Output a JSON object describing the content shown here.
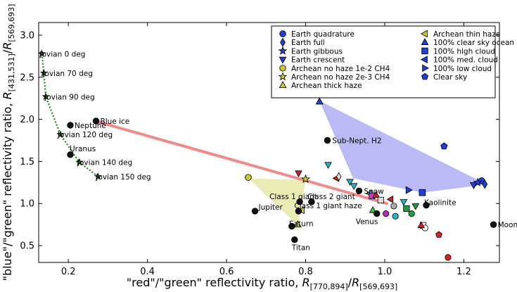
{
  "chart_data": {
    "type": "scatter",
    "xlabel": "\"red\"/\"green\" reflectivity ratio, R[770,894]/R[569,693]",
    "ylabel": "\"blue\"/\"green\" reflectivity ratio, R[431,531]/R[569,693]",
    "xlabel_main": "\"red\"/\"green\" reflectivity ratio, ",
    "xlabel_r1": "R",
    "xlabel_s1": "[770,894]",
    "xlabel_mid": "/",
    "xlabel_r2": "R",
    "xlabel_s2": "[569,693]",
    "ylabel_main": "\"blue\"/\"green\" reflectivity ratio, ",
    "ylabel_r1": "R",
    "ylabel_s1": "[431,531]",
    "ylabel_mid": "/",
    "ylabel_r2": "R",
    "ylabel_s2": "[569,693]",
    "xlim": [
      0.125,
      1.29
    ],
    "ylim": [
      0.3,
      3.15
    ],
    "xticks": [
      "0.2",
      "0.4",
      "0.6",
      "0.8",
      "1.0",
      "1.2"
    ],
    "yticks": [
      "0.5",
      "1.0",
      "1.5",
      "2.0",
      "2.5",
      "3.0"
    ],
    "xtick_values": [
      0.2,
      0.4,
      0.6,
      0.8,
      1.0,
      1.2
    ],
    "ytick_values": [
      0.5,
      1.0,
      1.5,
      2.0,
      2.5,
      3.0
    ],
    "legend_position": "top-right",
    "legend": [
      {
        "label": "Earth quadrature",
        "marker": "circle",
        "color": "#1f3fd8"
      },
      {
        "label": "Earth full",
        "marker": "diamond",
        "color": "#1f3fd8"
      },
      {
        "label": "Earth gibbous",
        "marker": "star",
        "color": "#1f3fd8"
      },
      {
        "label": "Earth crescent",
        "marker": "triangle-down",
        "color": "#1f3fd8"
      },
      {
        "label": "Archean no haze 1e-2 CH4",
        "marker": "circle",
        "color": "#c8c832"
      },
      {
        "label": "Archean no haze 2e-3 CH4",
        "marker": "star",
        "color": "#c8c832"
      },
      {
        "label": "Archean thick haze",
        "marker": "triangle-up",
        "color": "#c8c832"
      },
      {
        "label": "Archean thin haze",
        "marker": "triangle-left",
        "color": "#c8c832"
      },
      {
        "label": "100% clear sky ocean",
        "marker": "triangle-up",
        "color": "#1f3fd8"
      },
      {
        "label": "100% high cloud",
        "marker": "square",
        "color": "#1f3fd8"
      },
      {
        "label": "100% med. cloud",
        "marker": "triangle-left",
        "color": "#1f3fd8"
      },
      {
        "label": "100% low cloud",
        "marker": "triangle-right",
        "color": "#1f3fd8"
      },
      {
        "label": "Clear sky",
        "marker": "pentagon",
        "color": "#1f3fd8"
      }
    ],
    "jovian_series": [
      {
        "label": "Jovian 0 deg",
        "x": 0.133,
        "y": 2.78
      },
      {
        "label": "Jovian 70 deg",
        "x": 0.138,
        "y": 2.55
      },
      {
        "label": "Jovian 90 deg",
        "x": 0.143,
        "y": 2.27
      },
      {
        "label": "Jovian 120 deg",
        "x": 0.18,
        "y": 1.82
      },
      {
        "label": "Jovian 140 deg",
        "x": 0.228,
        "y": 1.49
      },
      {
        "label": "Jovian 150 deg",
        "x": 0.275,
        "y": 1.32
      }
    ],
    "labeled_bodies": [
      {
        "label": "Blue ice",
        "x": 0.27,
        "y": 1.98
      },
      {
        "label": "Neptune",
        "x": 0.205,
        "y": 1.93
      },
      {
        "label": "Uranus",
        "x": 0.205,
        "y": 1.58
      },
      {
        "label": "Sub-Nept. H2",
        "x": 0.855,
        "y": 1.75
      },
      {
        "label": "Snow",
        "x": 0.935,
        "y": 1.15
      },
      {
        "label": "Class 1 giant",
        "x": 0.785,
        "y": 1.02
      },
      {
        "label": "Class 2 giant",
        "x": 0.815,
        "y": 1.02
      },
      {
        "label": "Class 1 giant haze",
        "x": 0.782,
        "y": 0.91
      },
      {
        "label": "Jupiter",
        "x": 0.672,
        "y": 0.91
      },
      {
        "label": "Saturn",
        "x": 0.765,
        "y": 0.73
      },
      {
        "label": "Titan",
        "x": 0.772,
        "y": 0.57
      },
      {
        "label": "Venus",
        "x": 0.98,
        "y": 0.88
      },
      {
        "label": "Kaolinite",
        "x": 1.105,
        "y": 0.98
      },
      {
        "label": "Moon",
        "x": 1.275,
        "y": 0.75
      }
    ],
    "blue_ice_trend": {
      "x": [
        0.275,
        1.005
      ],
      "y": [
        1.97,
        1.0
      ]
    },
    "ocean_region": [
      [
        0.835,
        2.22
      ],
      [
        1.255,
        1.235
      ],
      [
        1.23,
        1.21
      ],
      [
        1.095,
        1.13
      ],
      [
        0.92,
        1.3
      ],
      [
        0.835,
        2.22
      ]
    ],
    "archean_region": [
      [
        0.655,
        1.3
      ],
      [
        0.8,
        1.28
      ],
      [
        0.78,
        0.74
      ],
      [
        0.655,
        1.3
      ]
    ],
    "earth_points": [
      {
        "marker": "triangle-up",
        "x": 0.835,
        "y": 2.21,
        "color": "#1f3fd8"
      },
      {
        "marker": "pentagon",
        "x": 1.15,
        "y": 1.68,
        "color": "#1f3fd8"
      },
      {
        "marker": "triangle-right",
        "x": 1.06,
        "y": 1.16,
        "color": "#1f3fd8"
      },
      {
        "marker": "square",
        "x": 1.095,
        "y": 1.13,
        "color": "#1f3fd8"
      },
      {
        "marker": "triangle-down",
        "x": 1.225,
        "y": 1.22,
        "color": "#1f3fd8"
      },
      {
        "marker": "circle",
        "x": 1.245,
        "y": 1.27,
        "color": "#1f3fd8"
      },
      {
        "marker": "diamond",
        "x": 1.253,
        "y": 1.23,
        "color": "#1f3fd8"
      },
      {
        "marker": "star",
        "x": 1.235,
        "y": 1.25,
        "color": "#1f3fd8"
      }
    ],
    "archean_points": [
      {
        "marker": "circle",
        "x": 0.655,
        "y": 1.31,
        "color": "#c8c832"
      },
      {
        "marker": "star",
        "x": 0.8,
        "y": 1.29,
        "color": "#c8c832"
      },
      {
        "marker": "triangle-up",
        "x": 0.78,
        "y": 0.75,
        "color": "#c8c832"
      },
      {
        "marker": "triangle-left",
        "x": 0.79,
        "y": 0.92,
        "color": "#c8c832"
      }
    ],
    "colored_points": [
      {
        "marker": "triangle-down",
        "x": 0.782,
        "y": 1.36,
        "color": "#d62020"
      },
      {
        "marker": "triangle-down",
        "x": 0.857,
        "y": 1.46,
        "color": "#26b5c5"
      },
      {
        "marker": "triangle-left",
        "x": 0.878,
        "y": 1.3,
        "color": "#d62020"
      },
      {
        "marker": "diamond",
        "x": 0.884,
        "y": 1.32,
        "color": "#dddddd"
      },
      {
        "marker": "triangle-down",
        "x": 0.912,
        "y": 1.26,
        "color": "#26b5c5"
      },
      {
        "marker": "triangle-down",
        "x": 0.922,
        "y": 1.21,
        "color": "#26b5c5"
      },
      {
        "marker": "triangle-left",
        "x": 0.962,
        "y": 1.12,
        "color": "#4aa8e8"
      },
      {
        "marker": "square",
        "x": 0.968,
        "y": 1.09,
        "color": "#d632d6"
      },
      {
        "marker": "triangle-up",
        "x": 0.978,
        "y": 1.1,
        "color": "#d62020"
      },
      {
        "marker": "square",
        "x": 0.99,
        "y": 1.04,
        "color": "#dddddd"
      },
      {
        "marker": "triangle-left",
        "x": 1.015,
        "y": 1.05,
        "color": "#d62020"
      },
      {
        "marker": "circle",
        "x": 1.023,
        "y": 0.97,
        "color": "#aaaaaa"
      },
      {
        "marker": "triangle-down",
        "x": 1.048,
        "y": 1.02,
        "color": "#26b5c5"
      },
      {
        "marker": "square",
        "x": 1.055,
        "y": 0.94,
        "color": "#1f9d40"
      },
      {
        "marker": "triangle-down",
        "x": 1.078,
        "y": 0.97,
        "color": "#1f9d40"
      },
      {
        "marker": "circle",
        "x": 1.068,
        "y": 0.88,
        "color": "#1f9d40"
      },
      {
        "marker": "triangle-up",
        "x": 0.97,
        "y": 0.92,
        "color": "#35c935"
      },
      {
        "marker": "circle",
        "x": 1.003,
        "y": 0.88,
        "color": "#b82db8"
      },
      {
        "marker": "circle",
        "x": 1.027,
        "y": 0.85,
        "color": "#26b5c5"
      },
      {
        "marker": "square",
        "x": 1.097,
        "y": 0.74,
        "color": "#ffffff"
      },
      {
        "marker": "circle",
        "x": 1.102,
        "y": 0.71,
        "color": "#ffffff"
      },
      {
        "marker": "triangle-up",
        "x": 1.092,
        "y": 0.74,
        "color": "#d62020"
      },
      {
        "marker": "pentagon",
        "x": 1.137,
        "y": 0.63,
        "color": "#d62020"
      },
      {
        "marker": "circle",
        "x": 1.16,
        "y": 0.36,
        "color": "#d62020"
      }
    ]
  }
}
